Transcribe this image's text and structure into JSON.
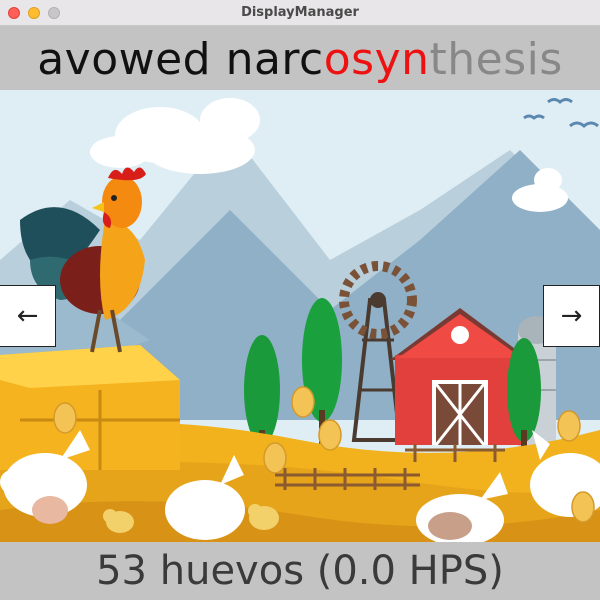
{
  "window": {
    "title": "DisplayManager"
  },
  "banner": {
    "typed": "avowed narc",
    "current": "osyn",
    "pending": "thesis"
  },
  "navigation": {
    "prev_glyph": "←",
    "next_glyph": "→"
  },
  "status": {
    "egg_count": "53",
    "egg_unit": "huevos",
    "rate": "(0.0 HPS)"
  },
  "colors": {
    "typed": "#111111",
    "current": "#ee1111",
    "pending": "#888888",
    "banner_bg": "#c3c3c3"
  }
}
